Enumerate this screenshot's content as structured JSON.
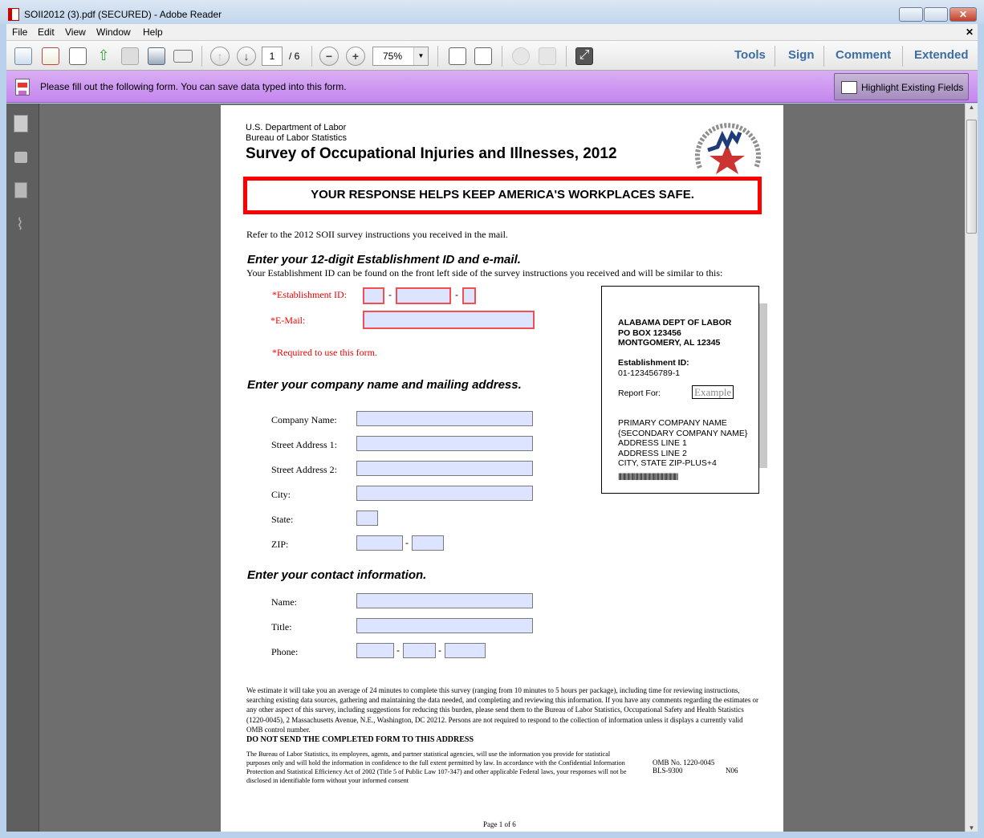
{
  "window": {
    "title": "SOII2012 (3).pdf (SECURED) - Adobe Reader",
    "app_icon": "pdf-icon"
  },
  "menu": [
    "File",
    "Edit",
    "View",
    "Window",
    "Help"
  ],
  "toolbar": {
    "page_current": "1",
    "page_total": "/ 6",
    "zoom": "75%",
    "tabs": [
      "Tools",
      "Sign",
      "Comment",
      "Extended"
    ]
  },
  "formbar": {
    "message": "Please fill out the following form. You can save data typed into this form.",
    "highlight_label": "Highlight Existing Fields"
  },
  "page": {
    "agency1": "U.S. Department of Labor",
    "agency2": "Bureau of Labor Statistics",
    "title": "Survey of Occupational Injuries and Illnesses, 2012",
    "banner": "YOUR RESPONSE HELPS KEEP AMERICA'S WORKPLACES SAFE.",
    "logo_text": "U.S. BUREAU OF LABOR STATISTICS",
    "refer": "Refer to the 2012 SOII survey instructions you received in the mail.",
    "sec1_title": "Enter your 12-digit Establishment ID and e-mail.",
    "sec1_desc": "Your Establishment ID can be found on the front left side of the survey instructions you received and will be similar to this:",
    "est_label": "*Establishment ID:",
    "email_label": "*E-Mail:",
    "required_note": "*Required to use this form.",
    "sec2_title": "Enter your company name and mailing address.",
    "company_label": "Company Name:",
    "street1_label": "Street Address 1:",
    "street2_label": "Street Address 2:",
    "city_label": "City:",
    "state_label": "State:",
    "zip_label": "ZIP:",
    "sec3_title": "Enter your contact information.",
    "name_label": "Name:",
    "title_label": "Title:",
    "phone_label": "Phone:",
    "dash": "-",
    "example": {
      "l1": "ALABAMA DEPT OF LABOR",
      "l2": "PO BOX 123456",
      "l3": "MONTGOMERY, AL 12345",
      "est_label": "Establishment ID:",
      "est_value": "01-123456789-1",
      "report_for": "Report For:",
      "stamp": "Example",
      "a1": "PRIMARY COMPANY NAME",
      "a2": "{SECONDARY COMPANY NAME}",
      "a3": "ADDRESS LINE 1",
      "a4": "ADDRESS LINE 2",
      "a5": "CITY, STATE  ZIP-PLUS+4",
      "barcode": "||||||||||||||||||||||||||||||||||||||||||||||||||||||||||||"
    },
    "burden": "We estimate it will take you an average of 24 minutes to complete this survey (ranging from 10 minutes to 5 hours per package), including time for reviewing instructions, searching existing data sources, gathering and maintaining the data needed, and completing and reviewing this information.  If you have any comments regarding the estimates or any other aspect of this survey, including suggestions for reducing this burden, please send them to the Bureau of Labor Statistics, Occupational Safety and Health Statistics (1220-0045), 2 Massachusetts Avenue, N.E., Washington, DC 20212.  Persons are not required to respond to the collection of information unless it displays a currently valid OMB control number.",
    "do_not_send": "DO NOT SEND THE COMPLETED FORM TO THIS ADDRESS",
    "confidential": "The Bureau of Labor Statistics, its employees, agents, and partner statistical agencies, will use the information you provide for statistical purposes only and will hold the information in confidence to the full extent permitted by law.  In accordance with the Confidential Information Protection and Statistical Efficiency Act of 2002 (Title 5 of Public Law 107-347) and other applicable Federal laws, your responses will not be disclosed in identifiable form without your informed consent",
    "omb": "OMB No. 1220-0045",
    "bls": "BLS-9300",
    "n06": "N06",
    "page_footer": "Page 1 of 6"
  },
  "colors": {
    "form_bar": "#c990f0",
    "field_fill": "#dde4ff",
    "required_red": "#e00000",
    "tab_blue": "#3c6da3"
  }
}
